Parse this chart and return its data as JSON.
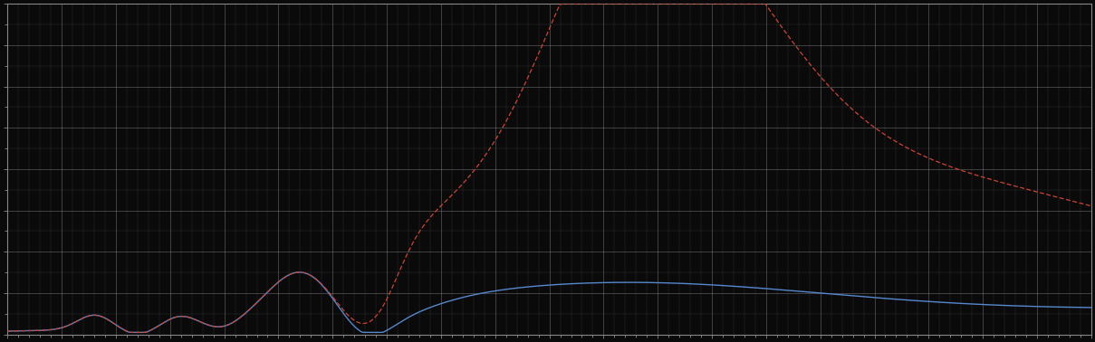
{
  "background_color": "#0a0a0a",
  "plot_bg_color": "#0a0a0a",
  "grid_color": "#aaaaaa",
  "blue_line_color": "#5588cc",
  "red_line_color": "#cc4433",
  "figsize": [
    12.09,
    3.78
  ],
  "dpi": 100,
  "xlim": [
    0,
    100
  ],
  "ylim": [
    0,
    8
  ],
  "ytick_major": 1,
  "xtick_major": 5,
  "spine_color": "#888888",
  "tick_color": "#888888"
}
